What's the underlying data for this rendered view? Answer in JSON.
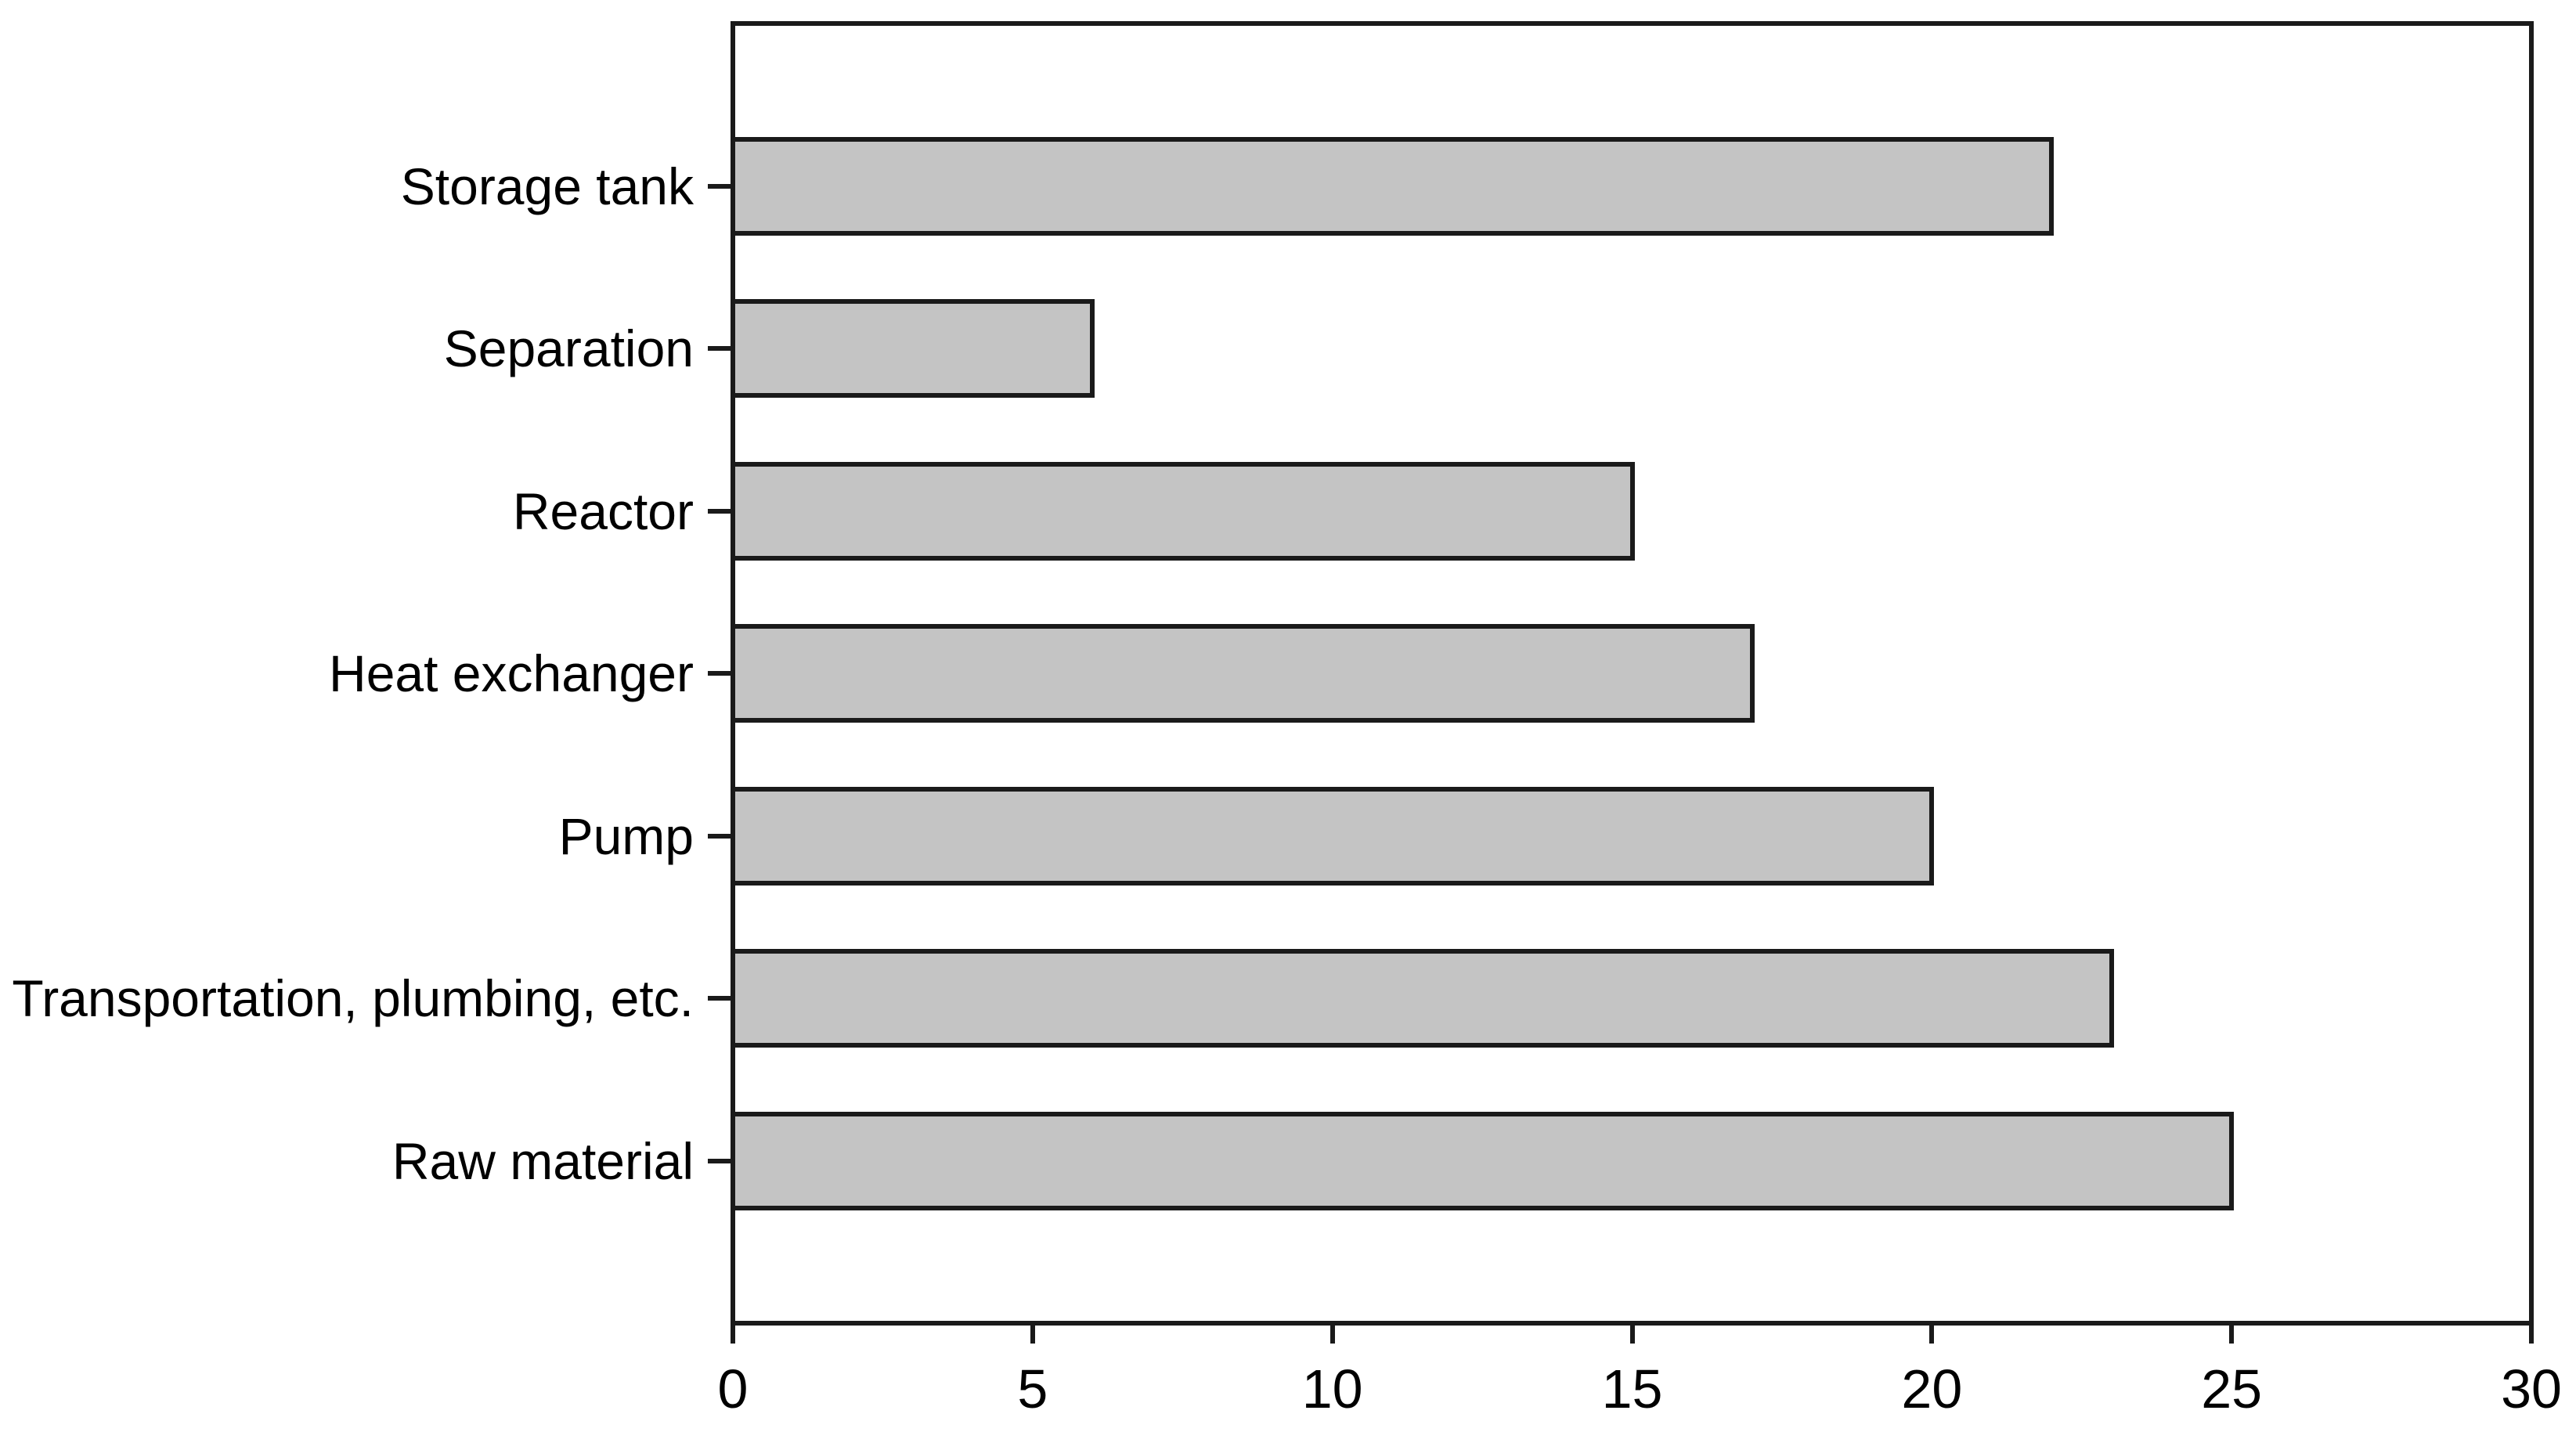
{
  "chart_data": {
    "type": "bar",
    "orientation": "horizontal",
    "title": "",
    "xlabel": "",
    "ylabel": "",
    "categories": [
      "Storage tank",
      "Separation",
      "Reactor",
      "Heat exchanger",
      "Pump",
      "Transportation, plumbing, etc.",
      "Raw material"
    ],
    "values": [
      22,
      6,
      15,
      17,
      20,
      23,
      25
    ],
    "xlim": [
      0,
      30
    ],
    "xticks": [
      0,
      5,
      10,
      15,
      20,
      25,
      30
    ],
    "grid": false,
    "legend": "none",
    "frame": "full-box",
    "colors": {
      "bar_fill": "#c4c4c4",
      "line": "#1a1a1a",
      "text": "#000000",
      "background": "#ffffff"
    }
  }
}
